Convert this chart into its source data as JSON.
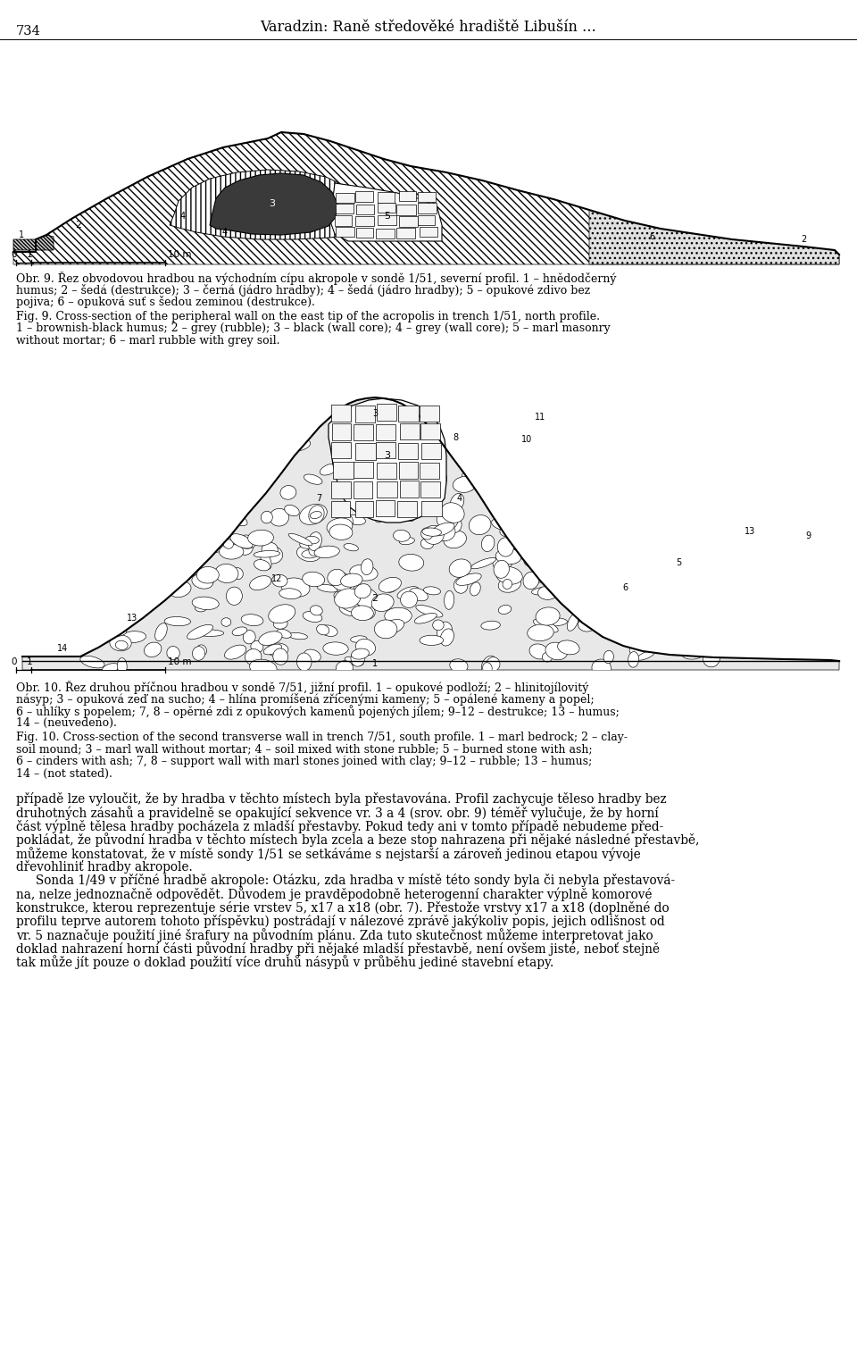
{
  "page_width": 9.6,
  "page_height": 15.17,
  "bg": "#ffffff",
  "header_num": "734",
  "header_title": "Varadzin: Raně středověké hradiště Libušín …",
  "cap9_cz_line1": "Obr. 9. Řez obvodovou hradbou na východním cípu akropole v sondě 1/51, severní profil. 1 – hnědodčerný",
  "cap9_cz_line2": "humus; 2 – šedá (destrukce); 3 – černá (jádro hradby); 4 – šedá (jádro hradby); 5 – opukové zdivo bez",
  "cap9_cz_line3": "pojiva; 6 – opuková suť s šedou zeminou (destrukce).",
  "cap9_en_line1": "Fig. 9. Cross-section of the peripheral wall on the east tip of the acropolis in trench 1/51, north profile.",
  "cap9_en_line2": "1 – brownish-black humus; 2 – grey (rubble); 3 – black (wall core); 4 – grey (wall core); 5 – marl masonry",
  "cap9_en_line3": "without mortar; 6 – marl rubble with grey soil.",
  "cap10_cz_line1": "Obr. 10. Řez druhou příčnou hradbou v sondě 7/51, jižní profil. 1 – opukové podloží; 2 – hlinitojílovitý",
  "cap10_cz_line2": "násyp; 3 – opuková zeď na sucho; 4 – hlína promíšená zřícenými kameny; 5 – opálené kameny a popel;",
  "cap10_cz_line3": "6 – uhlíky s popelem; 7, 8 – opěrné zdi z opukových kamenů pojených jílem; 9–12 – destrukce; 13 – humus;",
  "cap10_cz_line4": "14 – (neuvedeno).",
  "cap10_en_line1": "Fig. 10. Cross-section of the second transverse wall in trench 7/51, south profile. 1 – marl bedrock; 2 – clay-",
  "cap10_en_line2": "soil mound; 3 – marl wall without mortar; 4 – soil mixed with stone rubble; 5 – burned stone with ash;",
  "cap10_en_line3": "6 – cinders with ash; 7, 8 – support wall with marl stones joined with clay; 9–12 – rubble; 13 – humus;",
  "cap10_en_line4": "14 – (not stated).",
  "body_lines": [
    "případě lze vyloučit, že by hradba v těchto místech byla přestavována. Profil zachycuje těleso hradby bez",
    "druhotných zásahů a pravidelně se opakující sekvence vr. 3 a 4 (srov. obr. 9) téměř vylučuje, že by horní",
    "část výplně tělesa hradby pocházela z mladší přestavby. Pokud tedy ani v tomto případě nebudeme před-",
    "pokládat, že původní hradba v těchto místech byla zcela a beze stop nahrazena při nějaké následné přestavbě,",
    "můžeme konstatovat, že v místě sondy 1/51 se setkáváme s nejstarší a zároveň jedinou etapou vývoje",
    "dřevohliniť hradby akropole.",
    "     Sonda 1/49 v příčné hradbě akropole: Otázku, zda hradba v místě této sondy byla či nebyla přestavová-",
    "na, nelze jednoznačně odpovědět. Důvodem je pravděpodobně heterogenní charakter výplně komorové",
    "konstrukce, kterou reprezentuje série vrstev 5, x17 a x18 (obr. 7). Přestože vrstvy x17 a x18 (doplněné do",
    "profilu teprve autorem tohoto příspěvku) postrádají v nálezové zprávě jakýkoliv popis, jejich odlišnost od",
    "vr. 5 naznačuje použití jiné šrafury na původním plánu. Zda tuto skutečnost můžeme interpretovat jako",
    "doklad nahrazení horní části původní hradby při nějaké mladší přestavbě, není ovšem jisté, neboť stejně",
    "tak může jít pouze o doklad použití více druhů násypů v průběhu jediné stavební etapy."
  ]
}
